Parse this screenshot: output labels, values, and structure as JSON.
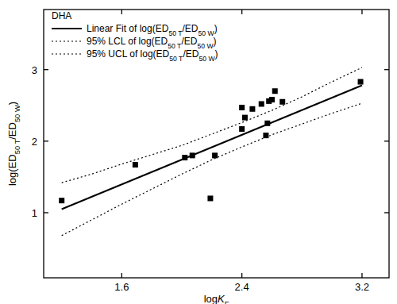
{
  "chart_data": {
    "type": "scatter",
    "legend_title": "DHA",
    "x_label": "logKF",
    "y_label": "log(ED50 T/ED50 W)",
    "xlim": [
      1.08,
      3.38
    ],
    "ylim": [
      0.09,
      3.84
    ],
    "xticks": [
      1.6,
      2.4,
      3.2
    ],
    "yticks": [
      1,
      2,
      3
    ],
    "grid": false,
    "legend": "top-left",
    "series": [
      {
        "name": "DHA",
        "type": "scatter",
        "marker": "square",
        "color": "#000000",
        "x": [
          1.2,
          1.69,
          2.02,
          2.07,
          2.22,
          2.19,
          2.4,
          2.4,
          2.42,
          2.47,
          2.53,
          2.56,
          2.57,
          2.58,
          2.6,
          2.62,
          2.67,
          3.19
        ],
        "values": [
          1.17,
          1.67,
          1.77,
          1.8,
          1.8,
          1.2,
          2.17,
          2.47,
          2.33,
          2.45,
          2.52,
          2.08,
          2.25,
          2.56,
          2.58,
          2.7,
          2.55,
          2.83
        ]
      },
      {
        "name": "Linear Fit of log(ED50 T/ED50 W)",
        "type": "line",
        "line_style": "solid",
        "color": "#000000",
        "x": [
          1.2,
          3.2
        ],
        "values": [
          1.05,
          2.78
        ]
      },
      {
        "name": "95% LCL of log(ED50 T/ED50 W)",
        "type": "line",
        "line_style": "dotted",
        "color": "#000000",
        "x": [
          1.2,
          1.4,
          1.6,
          1.8,
          2.0,
          2.2,
          2.4,
          2.6,
          2.8,
          3.0,
          3.2
        ],
        "values": [
          0.68,
          0.9,
          1.12,
          1.33,
          1.54,
          1.74,
          1.92,
          2.09,
          2.24,
          2.39,
          2.53
        ]
      },
      {
        "name": "95% UCL of log(ED50 T/ED50 W)",
        "type": "line",
        "line_style": "dotted",
        "color": "#000000",
        "x": [
          1.2,
          1.4,
          1.6,
          1.8,
          2.0,
          2.2,
          2.4,
          2.6,
          2.8,
          3.0,
          3.2
        ],
        "values": [
          1.42,
          1.54,
          1.68,
          1.81,
          1.94,
          2.1,
          2.26,
          2.43,
          2.62,
          2.83,
          3.03
        ]
      }
    ]
  }
}
